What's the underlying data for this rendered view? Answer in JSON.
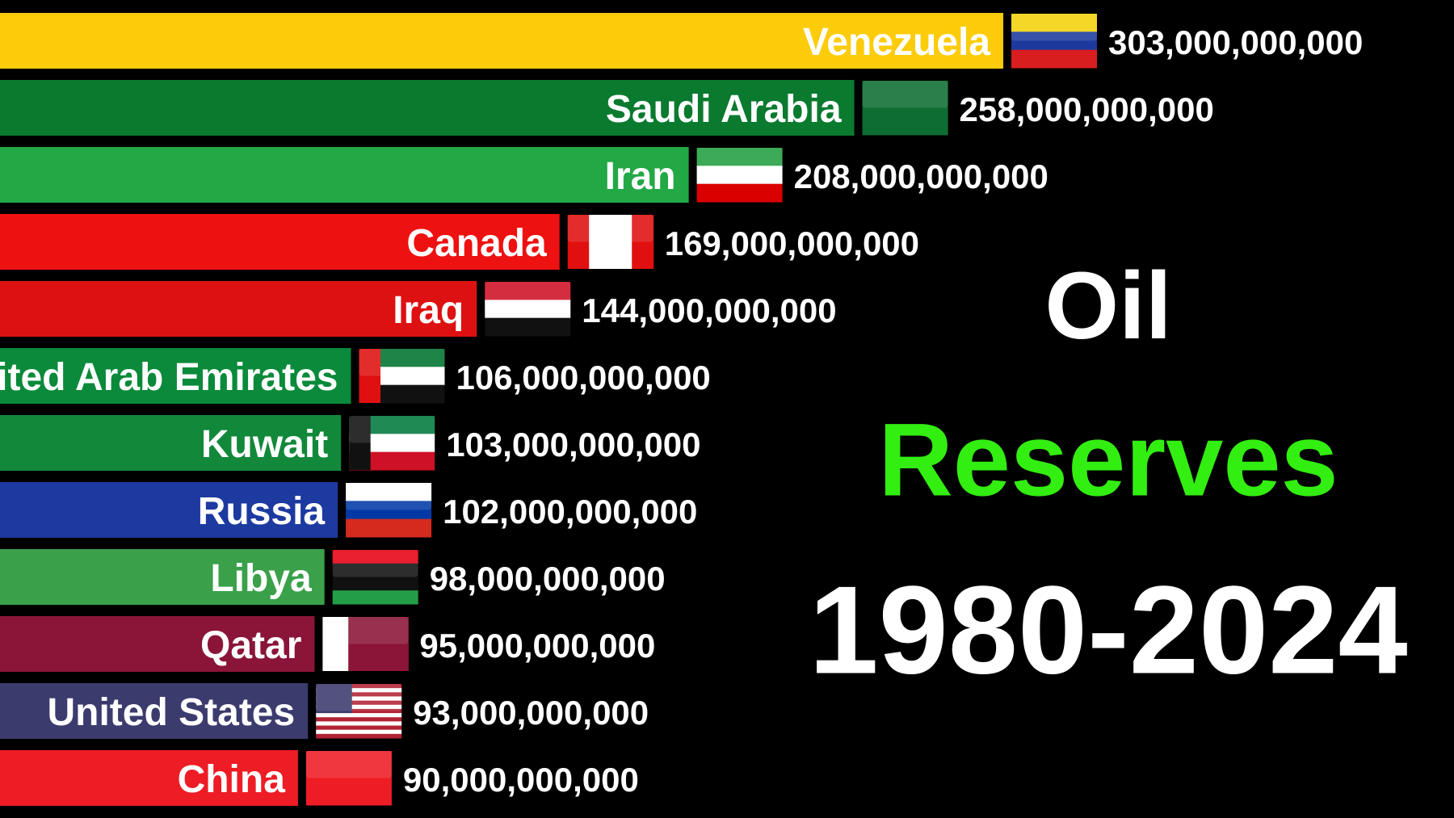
{
  "chart_data": {
    "type": "barh",
    "title": [
      "Oil",
      "Reserves",
      "1980-2024"
    ],
    "title_colors": [
      "#ffffff",
      "#33ee11",
      "#ffffff"
    ],
    "categories": [
      "Venezuela",
      "Saudi Arabia",
      "Iran",
      "Canada",
      "Iraq",
      "United Arab Emirates",
      "Kuwait",
      "Russia",
      "Libya",
      "Qatar",
      "United States",
      "China"
    ],
    "values": [
      303000000000,
      258000000000,
      208000000000,
      169000000000,
      144000000000,
      106000000000,
      103000000000,
      102000000000,
      98000000000,
      95000000000,
      93000000000,
      90000000000
    ],
    "value_labels": [
      "303,000,000,000",
      "258,000,000,000",
      "208,000,000,000",
      "169,000,000,000",
      "144,000,000,000",
      "106,000,000,000",
      "103,000,000,000",
      "102,000,000,000",
      "98,000,000,000",
      "95,000,000,000",
      "93,000,000,000",
      "90,000,000,000"
    ],
    "colors": [
      "#fccc0a",
      "#0a7a2f",
      "#22a845",
      "#ee1111",
      "#dd1111",
      "#0a8a3a",
      "#12883a",
      "#1d3aa0",
      "#3aa04a",
      "#8a1538",
      "#3c3b6e",
      "#ee1c25"
    ]
  }
}
